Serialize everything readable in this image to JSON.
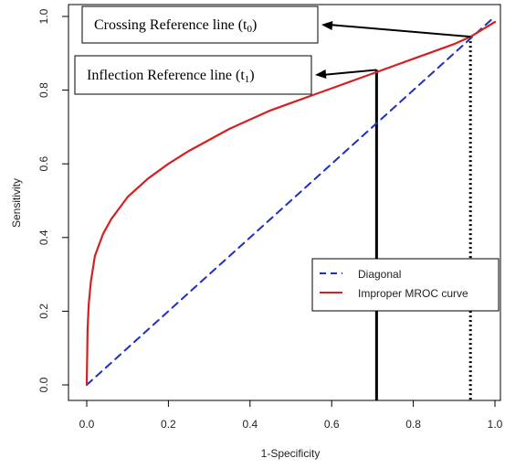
{
  "chart_data": {
    "type": "line",
    "xlabel": "1-Specificity",
    "ylabel": "Sensitivity",
    "xlim": [
      0,
      1
    ],
    "ylim": [
      0,
      1
    ],
    "x_ticks": [
      "0.0",
      "0.2",
      "0.4",
      "0.6",
      "0.8",
      "1.0"
    ],
    "y_ticks": [
      "0.0",
      "0.2",
      "0.4",
      "0.6",
      "0.8",
      "1.0"
    ],
    "grid": false,
    "series": [
      {
        "name": "Diagonal",
        "color": "#1f2fbf",
        "style": "dashed",
        "x": [
          0,
          1
        ],
        "y": [
          0,
          1
        ]
      },
      {
        "name": "Improper MROC curve",
        "color": "#d42020",
        "style": "solid",
        "x": [
          0,
          0.002,
          0.005,
          0.01,
          0.02,
          0.04,
          0.06,
          0.08,
          0.1,
          0.15,
          0.2,
          0.25,
          0.3,
          0.35,
          0.4,
          0.45,
          0.5,
          0.55,
          0.6,
          0.65,
          0.7,
          0.75,
          0.8,
          0.85,
          0.9,
          0.94,
          0.97,
          1.0
        ],
        "y": [
          0.0,
          0.15,
          0.22,
          0.28,
          0.35,
          0.41,
          0.45,
          0.48,
          0.51,
          0.56,
          0.6,
          0.635,
          0.665,
          0.695,
          0.72,
          0.745,
          0.765,
          0.785,
          0.805,
          0.825,
          0.845,
          0.865,
          0.885,
          0.905,
          0.925,
          0.945,
          0.965,
          0.985
        ]
      }
    ],
    "legend": {
      "placement": "center-right",
      "entries": [
        "Diagonal",
        "Improper MROC curve"
      ]
    },
    "reference_lines": [
      {
        "name": "crossing",
        "x": 0.94,
        "y": 0.945,
        "style": "dotted"
      },
      {
        "name": "inflection",
        "x": 0.71,
        "y": 0.855,
        "style": "solid"
      }
    ],
    "annotations": [
      {
        "text_main": "Crossing Reference line (t",
        "subscript": "0",
        "text_close": ")",
        "points_to": "crossing"
      },
      {
        "text_main": "Inflection Reference line (t",
        "subscript": "1",
        "text_close": ")",
        "points_to": "inflection"
      }
    ]
  }
}
